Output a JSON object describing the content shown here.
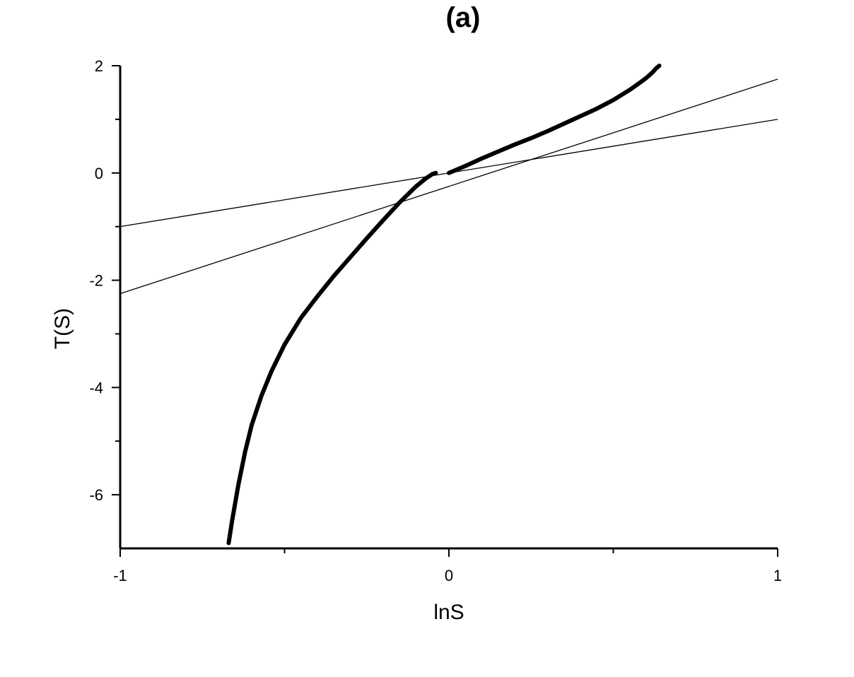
{
  "chart_data": {
    "type": "scatter",
    "title": "(a)",
    "xlabel": "lnS",
    "ylabel": "T(S)",
    "xlim": [
      -1,
      1
    ],
    "ylim": [
      -7,
      2
    ],
    "x_ticks": [
      -1,
      0,
      1
    ],
    "x_tick_labels": [
      "-1",
      "0",
      "1"
    ],
    "y_ticks": [
      -6,
      -4,
      -2,
      0,
      2
    ],
    "y_tick_labels": [
      "-6",
      "-4",
      "-2",
      "0",
      "2"
    ],
    "x_minor_ticks": [
      -0.5,
      0.5
    ],
    "y_minor_ticks": [
      -5,
      -3,
      -1,
      1
    ],
    "grid": false,
    "series": [
      {
        "style": "thick-dots",
        "x": [
          -0.67,
          -0.66,
          -0.64,
          -0.62,
          -0.6,
          -0.57,
          -0.54,
          -0.5,
          -0.45,
          -0.4,
          -0.35,
          -0.3,
          -0.25,
          -0.2,
          -0.15,
          -0.1,
          -0.07,
          -0.05,
          -0.04
        ],
        "y": [
          -6.9,
          -6.5,
          -5.8,
          -5.2,
          -4.7,
          -4.15,
          -3.7,
          -3.2,
          -2.7,
          -2.3,
          -1.92,
          -1.57,
          -1.22,
          -0.88,
          -0.55,
          -0.25,
          -0.1,
          -0.02,
          0.0
        ]
      },
      {
        "style": "thick-dots",
        "x": [
          0.0,
          0.05,
          0.1,
          0.15,
          0.2,
          0.25,
          0.3,
          0.35,
          0.4,
          0.45,
          0.5,
          0.55,
          0.58,
          0.6,
          0.62,
          0.63,
          0.64
        ],
        "y": [
          0.0,
          0.13,
          0.27,
          0.4,
          0.53,
          0.65,
          0.78,
          0.92,
          1.06,
          1.2,
          1.36,
          1.55,
          1.68,
          1.77,
          1.88,
          1.95,
          2.0
        ]
      },
      {
        "style": "thin-line",
        "x": [
          -1,
          1
        ],
        "y": [
          -1.0,
          1.0
        ]
      },
      {
        "style": "thin-line",
        "x": [
          -1,
          1
        ],
        "y": [
          -2.25,
          1.75
        ]
      }
    ]
  }
}
